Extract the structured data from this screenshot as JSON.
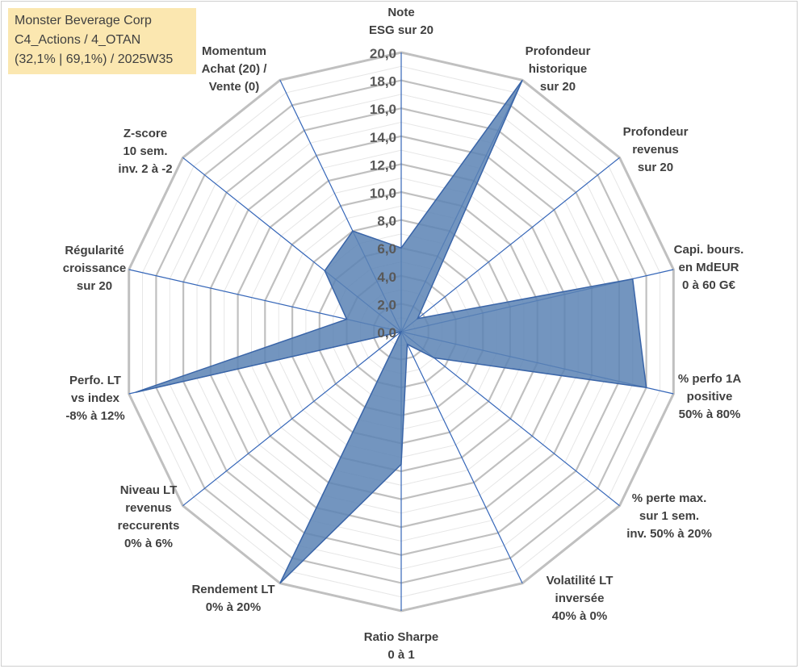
{
  "title_box": {
    "line1": "Monster Beverage Corp",
    "line2": "C4_Actions / 4_OTAN",
    "line3": "(32,1% | 69,1%) / 2025W35"
  },
  "chart_data": {
    "type": "radar",
    "rmax": 20,
    "ticks": [
      "0,0",
      "2,0",
      "4,0",
      "6,0",
      "8,0",
      "10,0",
      "12,0",
      "14,0",
      "16,0",
      "18,0",
      "20,0"
    ],
    "axes": [
      {
        "label": [
          "Note",
          "ESG sur 20"
        ],
        "value": 6.0
      },
      {
        "label": [
          "Profondeur",
          "historique",
          "sur 20"
        ],
        "value": 20.0
      },
      {
        "label": [
          "Profondeur",
          "revenus",
          "sur 20"
        ],
        "value": 1.5
      },
      {
        "label": [
          "Capi. bours.",
          "en MdEUR",
          "0 à 60 G€"
        ],
        "value": 17.0
      },
      {
        "label": [
          "% perfo 1A",
          "positive",
          "50% à 80%"
        ],
        "value": 18.0
      },
      {
        "label": [
          "% perte max.",
          "sur 1 sem.",
          "inv. 50% à 20%"
        ],
        "value": 3.0
      },
      {
        "label": [
          "Volatilité LT",
          "inversée",
          "40% à 0%"
        ],
        "value": 1.0
      },
      {
        "label": [
          "Ratio Sharpe",
          "0 à 1"
        ],
        "value": 9.5
      },
      {
        "label": [
          "Rendement LT",
          "0% à 20%"
        ],
        "value": 20.0
      },
      {
        "label": [
          "Niveau LT",
          "revenus",
          "reccurents",
          "0% à 6%"
        ],
        "value": 0.0
      },
      {
        "label": [
          "Perfo. LT",
          "vs index",
          "-8% à 12%"
        ],
        "value": 19.5
      },
      {
        "label": [
          "Régularité",
          "croissance",
          "sur 20"
        ],
        "value": 4.0
      },
      {
        "label": [
          "Z-score",
          "10 sem.",
          "inv. 2 à -2"
        ],
        "value": 7.0
      },
      {
        "label": [
          "Momentum",
          "Achat (20) /",
          "Vente (0)"
        ],
        "value": 8.0
      }
    ],
    "series": [
      {
        "values": [
          6.0,
          20.0,
          1.5,
          17.0,
          18.0,
          3.0,
          1.0,
          9.5,
          20.0,
          0.0,
          19.5,
          4.0,
          7.0,
          8.0
        ]
      }
    ],
    "fill_color": "#5b82b4",
    "line_color": "#3a65a8",
    "grid_color": "#c0c0c0",
    "spoke_color": "#3566b8"
  }
}
